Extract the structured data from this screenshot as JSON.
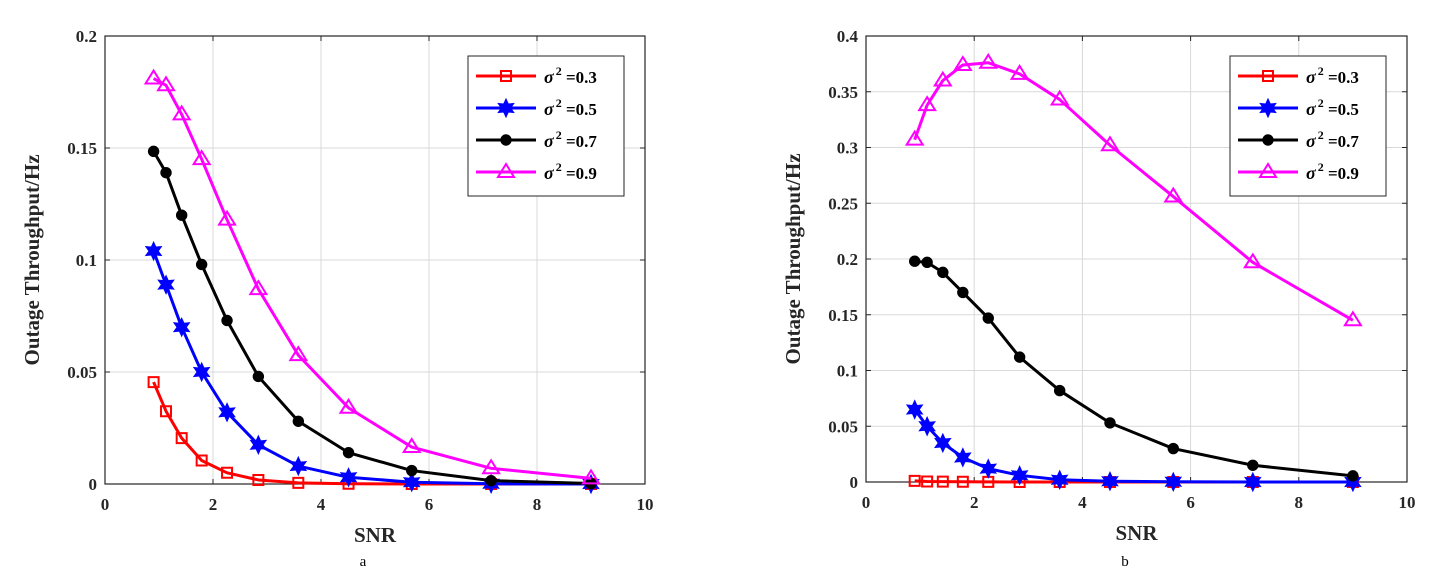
{
  "chart_data": [
    {
      "type": "line",
      "panel_label": "a",
      "xlabel": "SNR",
      "ylabel": "Outage Throughput/Hz",
      "xlim": [
        0,
        10
      ],
      "ylim": [
        0,
        0.2
      ],
      "xticks": [
        0,
        2,
        4,
        6,
        8,
        10
      ],
      "xtick_labels": [
        "0",
        "2",
        "4",
        "6",
        "8",
        "10"
      ],
      "yticks": [
        0,
        0.05,
        0.1,
        0.15,
        0.2
      ],
      "ytick_labels": [
        "0",
        "0.05",
        "0.1",
        "0.15",
        "0.2"
      ],
      "grid": true,
      "legend_position": "top-right",
      "x": [
        0.9,
        1.13,
        1.42,
        1.79,
        2.26,
        2.84,
        3.58,
        4.51,
        5.68,
        7.15,
        9.0
      ],
      "series": [
        {
          "name": "σ² =0.3",
          "label_base": "σ",
          "label_sup": "2",
          "label_rest": " =0.3",
          "color": "#ff0000",
          "marker": "square",
          "values": [
            0.0455,
            0.0325,
            0.0205,
            0.0105,
            0.005,
            0.0018,
            0.0005,
            0.0001,
            0.0,
            0.0,
            0.0
          ]
        },
        {
          "name": "σ² =0.5",
          "label_base": "σ",
          "label_sup": "2",
          "label_rest": " =0.5",
          "color": "#0000ff",
          "marker": "hexagram",
          "values": [
            0.104,
            0.089,
            0.07,
            0.05,
            0.032,
            0.0175,
            0.008,
            0.003,
            0.0008,
            0.0001,
            0.0
          ]
        },
        {
          "name": "σ² =0.7",
          "label_base": "σ",
          "label_sup": "2",
          "label_rest": " =0.7",
          "color": "#000000",
          "marker": "circle",
          "values": [
            0.1485,
            0.139,
            0.12,
            0.098,
            0.073,
            0.048,
            0.028,
            0.014,
            0.006,
            0.0015,
            0.0002
          ]
        },
        {
          "name": "σ² =0.9",
          "label_base": "σ",
          "label_sup": "2",
          "label_rest": " =0.9",
          "color": "#ff00ff",
          "marker": "triangle",
          "values": [
            0.181,
            0.178,
            0.165,
            0.145,
            0.118,
            0.087,
            0.0575,
            0.034,
            0.0165,
            0.007,
            0.0025
          ]
        }
      ]
    },
    {
      "type": "line",
      "panel_label": "b",
      "xlabel": "SNR",
      "ylabel": "Outage Throughput/Hz",
      "xlim": [
        0,
        10
      ],
      "ylim": [
        0,
        0.4
      ],
      "xticks": [
        0,
        2,
        4,
        6,
        8,
        10
      ],
      "xtick_labels": [
        "0",
        "2",
        "4",
        "6",
        "8",
        "10"
      ],
      "yticks": [
        0,
        0.05,
        0.1,
        0.15,
        0.2,
        0.25,
        0.3,
        0.35,
        0.4
      ],
      "ytick_labels": [
        "0",
        "0.05",
        "0.1",
        "0.15",
        "0.2",
        "0.25",
        "0.3",
        "0.35",
        "0.4"
      ],
      "grid": true,
      "legend_position": "top-right",
      "x": [
        0.9,
        1.13,
        1.42,
        1.79,
        2.26,
        2.84,
        3.58,
        4.51,
        5.68,
        7.15,
        9.0
      ],
      "series": [
        {
          "name": "σ² =0.3",
          "label_base": "σ",
          "label_sup": "2",
          "label_rest": " =0.3",
          "color": "#ff0000",
          "marker": "square",
          "values": [
            0.001,
            0.0005,
            0.0003,
            0.0002,
            0.0001,
            0.0,
            0.0,
            0.0,
            0.0,
            0.0,
            0.0
          ]
        },
        {
          "name": "σ² =0.5",
          "label_base": "σ",
          "label_sup": "2",
          "label_rest": " =0.5",
          "color": "#0000ff",
          "marker": "hexagram",
          "values": [
            0.065,
            0.05,
            0.035,
            0.022,
            0.012,
            0.006,
            0.002,
            0.0007,
            0.0002,
            0.0,
            0.0
          ]
        },
        {
          "name": "σ² =0.7",
          "label_base": "σ",
          "label_sup": "2",
          "label_rest": " =0.7",
          "color": "#000000",
          "marker": "circle",
          "values": [
            0.198,
            0.197,
            0.188,
            0.17,
            0.147,
            0.112,
            0.082,
            0.053,
            0.03,
            0.015,
            0.0055
          ]
        },
        {
          "name": "σ² =0.9",
          "label_base": "σ",
          "label_sup": "2",
          "label_rest": " =0.9",
          "color": "#ff00ff",
          "marker": "triangle",
          "values": [
            0.307,
            0.338,
            0.36,
            0.374,
            0.376,
            0.366,
            0.343,
            0.302,
            0.256,
            0.197,
            0.145
          ]
        }
      ]
    }
  ]
}
